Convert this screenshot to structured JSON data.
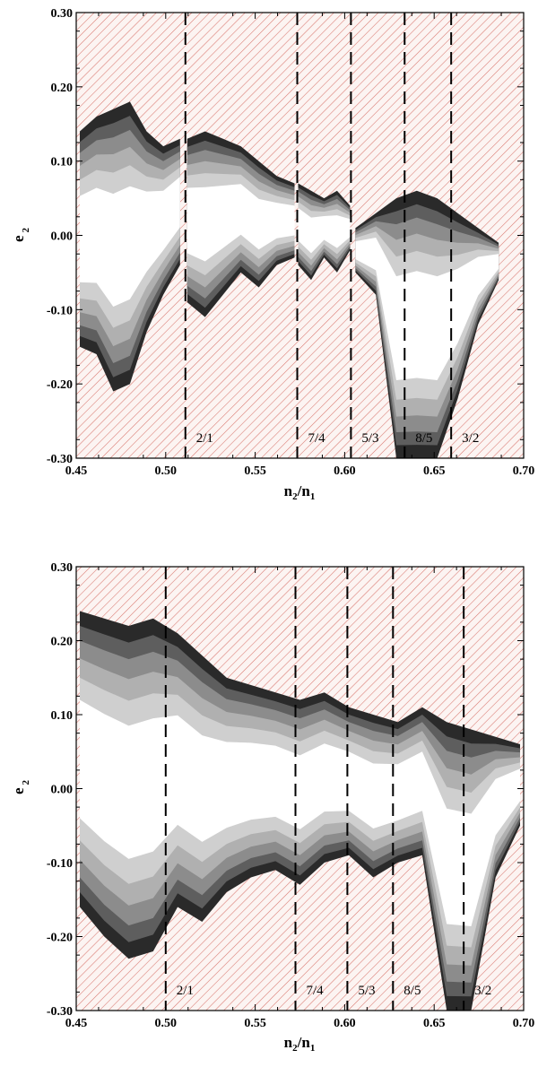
{
  "colors": {
    "hatch": "#d9786f",
    "background": "#fcf4f2",
    "frame": "#000000",
    "grays": [
      "#ffffff",
      "#e9e9e9",
      "#cfcfcf",
      "#b0b0b0",
      "#8c8c8c",
      "#5e5e5e",
      "#2a2a2a"
    ]
  },
  "chart_data": [
    {
      "type": "heatmap",
      "panel": "top",
      "xlabel": {
        "base": "n",
        "sub1": "2",
        "mid": "/n",
        "sub2": "1"
      },
      "ylabel": {
        "base": "e",
        "sub": "2"
      },
      "xlim": [
        0.45,
        0.7
      ],
      "ylim": [
        -0.3,
        0.3
      ],
      "xticks": [
        "0.45",
        "0.50",
        "0.55",
        "0.60",
        "0.65",
        "0.70"
      ],
      "yticks": [
        "-0.30",
        "-0.20",
        "-0.10",
        "0.00",
        "0.10",
        "0.20",
        "0.30"
      ],
      "grid": false,
      "resonances": [
        {
          "label": "2/1",
          "x": 0.511
        },
        {
          "label": "7/4",
          "x": 0.5735
        },
        {
          "label": "5/3",
          "x": 0.6035
        },
        {
          "label": "8/5",
          "x": 0.6335
        },
        {
          "label": "3/2",
          "x": 0.6595
        }
      ],
      "stable_regions": [
        {
          "name": "left-lobe",
          "xrange": [
            0.452,
            0.508
          ],
          "top": [
            0.14,
            0.16,
            0.17,
            0.18,
            0.14,
            0.12,
            0.13
          ],
          "bottom": [
            -0.15,
            -0.16,
            -0.21,
            -0.2,
            -0.13,
            -0.08,
            -0.04
          ]
        },
        {
          "name": "lobe-2-1",
          "xrange": [
            0.512,
            0.572
          ],
          "top": [
            0.13,
            0.14,
            0.13,
            0.12,
            0.1,
            0.08,
            0.07
          ],
          "bottom": [
            -0.09,
            -0.11,
            -0.08,
            -0.05,
            -0.07,
            -0.04,
            -0.03
          ]
        },
        {
          "name": "lobe-7-4",
          "xrange": [
            0.574,
            0.603
          ],
          "top": [
            0.07,
            0.06,
            0.05,
            0.06,
            0.04
          ],
          "bottom": [
            -0.04,
            -0.06,
            -0.03,
            -0.05,
            -0.02
          ]
        },
        {
          "name": "lobe-3-2",
          "xrange": [
            0.606,
            0.686
          ],
          "top": [
            0.01,
            0.03,
            0.05,
            0.06,
            0.05,
            0.03,
            0.01,
            -0.01
          ],
          "bottom": [
            -0.05,
            -0.08,
            -0.3,
            -0.3,
            -0.3,
            -0.22,
            -0.12,
            -0.06
          ]
        }
      ]
    },
    {
      "type": "heatmap",
      "panel": "bottom",
      "xlabel": {
        "base": "n",
        "sub1": "2",
        "mid": "/n",
        "sub2": "1"
      },
      "ylabel": {
        "base": "e",
        "sub": "2"
      },
      "xlim": [
        0.45,
        0.7
      ],
      "ylim": [
        -0.3,
        0.3
      ],
      "xticks": [
        "0.45",
        "0.50",
        "0.55",
        "0.60",
        "0.65",
        "0.70"
      ],
      "yticks": [
        "-0.30",
        "-0.20",
        "-0.10",
        "0.00",
        "0.10",
        "0.20",
        "0.30"
      ],
      "grid": false,
      "resonances": [
        {
          "label": "2/1",
          "x": 0.5
        },
        {
          "label": "7/4",
          "x": 0.5725
        },
        {
          "label": "5/3",
          "x": 0.6015
        },
        {
          "label": "8/5",
          "x": 0.627
        },
        {
          "label": "3/2",
          "x": 0.6665
        }
      ],
      "stable_regions": [
        {
          "name": "main-band",
          "xrange": [
            0.452,
            0.698
          ],
          "top": [
            0.24,
            0.23,
            0.22,
            0.23,
            0.21,
            0.18,
            0.15,
            0.14,
            0.13,
            0.12,
            0.13,
            0.11,
            0.1,
            0.09,
            0.11,
            0.09,
            0.08,
            0.07,
            0.06
          ],
          "bottom": [
            -0.16,
            -0.2,
            -0.23,
            -0.22,
            -0.16,
            -0.18,
            -0.14,
            -0.12,
            -0.11,
            -0.13,
            -0.1,
            -0.09,
            -0.12,
            -0.1,
            -0.09,
            -0.3,
            -0.3,
            -0.12,
            -0.05
          ]
        }
      ]
    }
  ]
}
